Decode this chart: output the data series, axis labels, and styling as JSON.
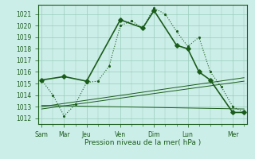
{
  "background_color": "#cceee8",
  "grid_color": "#99ccbb",
  "line_color": "#1a5c1a",
  "title": "Pression niveau de la mer( hPa )",
  "ylim": [
    1011.5,
    1021.8
  ],
  "yticks": [
    1012,
    1013,
    1014,
    1015,
    1016,
    1017,
    1018,
    1019,
    1020,
    1021
  ],
  "xtick_labels": [
    "Sam",
    "Mar",
    "Jeu",
    "",
    "Ven",
    "",
    "Dim",
    "",
    "Lun",
    "",
    "",
    "Mer"
  ],
  "xlim": [
    -0.3,
    18.3
  ],
  "day_tick_labels": [
    "Sam",
    "Mar",
    "Jeu",
    "Ven",
    "Dim",
    "Lun",
    "Mer"
  ],
  "day_tick_positions": [
    0,
    2,
    4,
    7,
    10,
    13,
    17
  ],
  "series1_x": [
    0,
    1,
    2,
    3,
    4,
    5,
    6,
    7,
    8,
    9,
    10,
    11,
    12,
    13,
    14,
    15,
    16,
    17,
    18
  ],
  "series1_y": [
    1015.3,
    1014.0,
    1012.2,
    1013.2,
    1015.1,
    1015.2,
    1016.5,
    1020.0,
    1020.4,
    1019.8,
    1021.5,
    1021.0,
    1019.5,
    1018.2,
    1019.0,
    1016.0,
    1014.7,
    1013.0,
    1012.5
  ],
  "series2_x": [
    0,
    2,
    4,
    7,
    9,
    10,
    12,
    13,
    14,
    15,
    17,
    18
  ],
  "series2_y": [
    1015.3,
    1015.6,
    1015.2,
    1020.5,
    1019.8,
    1021.3,
    1018.3,
    1018.0,
    1016.0,
    1015.3,
    1012.5,
    1012.5
  ],
  "trend1_x": [
    0,
    18
  ],
  "trend1_y": [
    1012.8,
    1015.2
  ],
  "trend2_x": [
    0,
    18
  ],
  "trend2_y": [
    1013.0,
    1015.5
  ],
  "trend3_x": [
    0,
    18
  ],
  "trend3_y": [
    1013.1,
    1012.8
  ]
}
